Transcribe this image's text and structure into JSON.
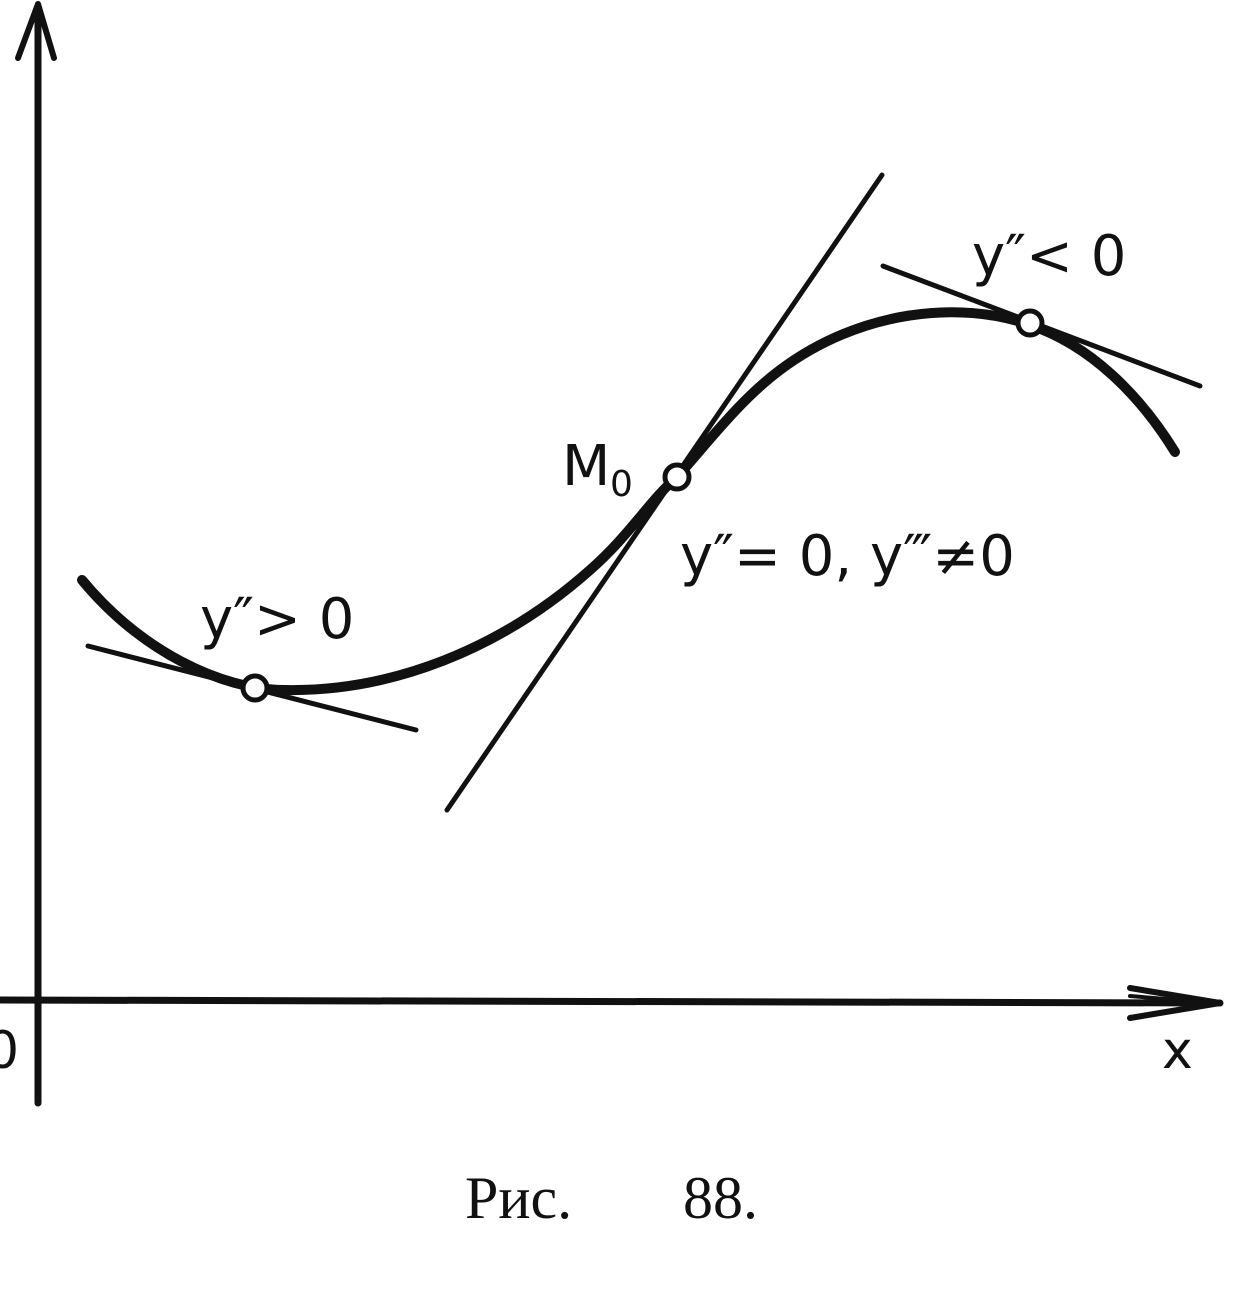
{
  "figure": {
    "axis_x_label": "x",
    "origin_label": "0",
    "point_label_main": "M",
    "point_label_sub": "0",
    "label_convex": "y″> 0",
    "label_inflection": "y″= 0,  y‴≠0",
    "label_concave": "y″< 0",
    "caption_prefix": "Рис.",
    "caption_number": "88."
  }
}
